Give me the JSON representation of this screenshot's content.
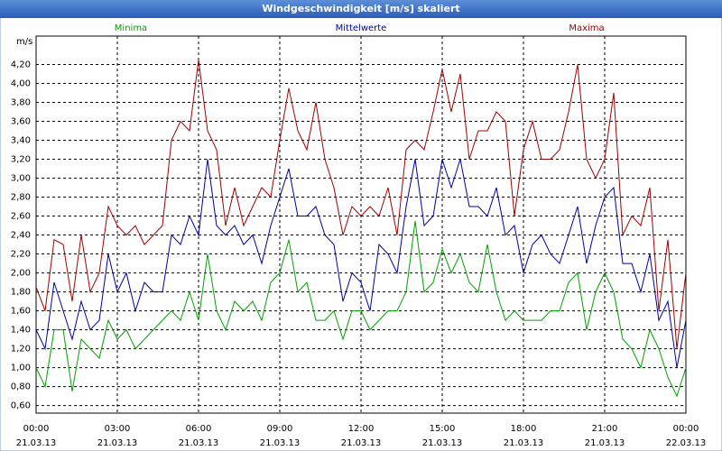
{
  "chart_data": {
    "type": "line",
    "title": "Windgeschwindigkeit [m/s] skaliert",
    "y_label": "m/s",
    "x": [
      "21.03.13 00:00",
      "21.03.13 00:20",
      "21.03.13 00:40",
      "21.03.13 01:00",
      "21.03.13 01:20",
      "21.03.13 01:40",
      "21.03.13 02:00",
      "21.03.13 02:20",
      "21.03.13 02:40",
      "21.03.13 03:00",
      "21.03.13 03:20",
      "21.03.13 03:40",
      "21.03.13 04:00",
      "21.03.13 04:20",
      "21.03.13 04:40",
      "21.03.13 05:00",
      "21.03.13 05:20",
      "21.03.13 05:40",
      "21.03.13 06:00",
      "21.03.13 06:20",
      "21.03.13 06:40",
      "21.03.13 07:00",
      "21.03.13 07:20",
      "21.03.13 07:40",
      "21.03.13 08:00",
      "21.03.13 08:20",
      "21.03.13 08:40",
      "21.03.13 09:00",
      "21.03.13 09:20",
      "21.03.13 09:40",
      "21.03.13 10:00",
      "21.03.13 10:20",
      "21.03.13 10:40",
      "21.03.13 11:00",
      "21.03.13 11:20",
      "21.03.13 11:40",
      "21.03.13 12:00",
      "21.03.13 12:20",
      "21.03.13 12:40",
      "21.03.13 13:00",
      "21.03.13 13:20",
      "21.03.13 13:40",
      "21.03.13 14:00",
      "21.03.13 14:20",
      "21.03.13 14:40",
      "21.03.13 15:00",
      "21.03.13 15:20",
      "21.03.13 15:40",
      "21.03.13 16:00",
      "21.03.13 16:20",
      "21.03.13 16:40",
      "21.03.13 17:00",
      "21.03.13 17:20",
      "21.03.13 17:40",
      "21.03.13 18:00",
      "21.03.13 18:20",
      "21.03.13 18:40",
      "21.03.13 19:00",
      "21.03.13 19:20",
      "21.03.13 19:40",
      "21.03.13 20:00",
      "21.03.13 20:20",
      "21.03.13 20:40",
      "21.03.13 21:00",
      "21.03.13 21:20",
      "21.03.13 21:40",
      "21.03.13 22:00",
      "21.03.13 22:20",
      "21.03.13 22:40",
      "21.03.13 23:00",
      "21.03.13 23:20",
      "21.03.13 23:40",
      "22.03.13 00:00"
    ],
    "series": [
      {
        "name": "Minima",
        "color": "#00a000",
        "values": [
          1.0,
          0.8,
          1.4,
          1.4,
          0.75,
          1.3,
          1.2,
          1.1,
          1.5,
          1.3,
          1.4,
          1.2,
          1.3,
          1.4,
          1.5,
          1.6,
          1.5,
          1.8,
          1.5,
          2.2,
          1.6,
          1.4,
          1.7,
          1.6,
          1.7,
          1.5,
          1.9,
          2.0,
          2.35,
          1.8,
          1.9,
          1.5,
          1.5,
          1.6,
          1.3,
          1.6,
          1.6,
          1.4,
          1.5,
          1.6,
          1.6,
          1.8,
          2.55,
          1.8,
          1.9,
          2.25,
          2.0,
          2.2,
          1.9,
          1.8,
          2.3,
          1.8,
          1.5,
          1.6,
          1.5,
          1.5,
          1.5,
          1.6,
          1.6,
          1.9,
          2.0,
          1.4,
          1.8,
          2.0,
          1.8,
          1.3,
          1.2,
          1.0,
          1.4,
          1.2,
          0.9,
          0.7,
          1.0
        ]
      },
      {
        "name": "Mittelwerte",
        "color": "#0000a0",
        "values": [
          1.4,
          1.2,
          1.9,
          1.6,
          1.3,
          1.7,
          1.4,
          1.5,
          2.2,
          1.8,
          2.0,
          1.6,
          1.9,
          1.8,
          1.8,
          2.4,
          2.3,
          2.6,
          2.4,
          3.2,
          2.5,
          2.4,
          2.5,
          2.3,
          2.4,
          2.1,
          2.5,
          2.8,
          3.1,
          2.6,
          2.6,
          2.7,
          2.4,
          2.3,
          1.7,
          2.0,
          1.9,
          1.6,
          2.3,
          2.2,
          2.0,
          2.7,
          3.2,
          2.5,
          2.6,
          3.2,
          2.9,
          3.2,
          2.7,
          2.7,
          2.6,
          2.9,
          2.4,
          2.5,
          2.0,
          2.3,
          2.4,
          2.2,
          2.1,
          2.4,
          2.7,
          2.1,
          2.5,
          2.8,
          2.9,
          2.1,
          2.1,
          1.8,
          2.2,
          1.5,
          1.7,
          1.0,
          1.5
        ]
      },
      {
        "name": "Maxima",
        "color": "#a00000",
        "values": [
          1.85,
          1.6,
          2.35,
          2.3,
          1.7,
          2.4,
          1.8,
          2.0,
          2.7,
          2.5,
          2.4,
          2.5,
          2.3,
          2.4,
          2.5,
          3.4,
          3.6,
          3.5,
          4.25,
          3.5,
          3.3,
          2.5,
          2.9,
          2.5,
          2.7,
          2.9,
          2.8,
          3.4,
          3.95,
          3.5,
          3.3,
          3.8,
          3.2,
          2.9,
          2.4,
          2.7,
          2.6,
          2.7,
          2.6,
          2.9,
          2.4,
          3.3,
          3.4,
          3.3,
          3.7,
          4.15,
          3.7,
          4.1,
          3.2,
          3.5,
          3.5,
          3.7,
          3.6,
          2.6,
          3.3,
          3.6,
          3.2,
          3.2,
          3.3,
          3.7,
          4.2,
          3.2,
          3.0,
          3.2,
          3.9,
          2.4,
          2.6,
          2.5,
          2.9,
          1.6,
          2.35,
          1.2,
          2.0
        ]
      }
    ],
    "xlim": [
      "21.03.13 00:00",
      "22.03.13 00:00"
    ],
    "xticks": [
      {
        "value": "21.03.13 00:00",
        "label": "00:00",
        "date_label": "21.03.13"
      },
      {
        "value": "21.03.13 03:00",
        "label": "03:00",
        "date_label": "21.03.13"
      },
      {
        "value": "21.03.13 06:00",
        "label": "06:00",
        "date_label": "21.03.13"
      },
      {
        "value": "21.03.13 09:00",
        "label": "09:00",
        "date_label": "21.03.13"
      },
      {
        "value": "21.03.13 12:00",
        "label": "12:00",
        "date_label": "21.03.13"
      },
      {
        "value": "21.03.13 15:00",
        "label": "15:00",
        "date_label": "21.03.13"
      },
      {
        "value": "21.03.13 18:00",
        "label": "18:00",
        "date_label": "21.03.13"
      },
      {
        "value": "21.03.13 21:00",
        "label": "21:00",
        "date_label": "21.03.13"
      },
      {
        "value": "22.03.13 00:00",
        "label": "00:00",
        "date_label": "22.03.13"
      }
    ],
    "ylim": [
      0.52,
      4.5
    ],
    "yticks": [
      {
        "value": 0.6,
        "label": "0,60"
      },
      {
        "value": 0.8,
        "label": "0,80"
      },
      {
        "value": 1.0,
        "label": "1,00"
      },
      {
        "value": 1.2,
        "label": "1,20"
      },
      {
        "value": 1.4,
        "label": "1,40"
      },
      {
        "value": 1.6,
        "label": "1,60"
      },
      {
        "value": 1.8,
        "label": "1,80"
      },
      {
        "value": 2.0,
        "label": "2,00"
      },
      {
        "value": 2.2,
        "label": "2,20"
      },
      {
        "value": 2.4,
        "label": "2,40"
      },
      {
        "value": 2.6,
        "label": "2,60"
      },
      {
        "value": 2.8,
        "label": "2,80"
      },
      {
        "value": 3.0,
        "label": "3,00"
      },
      {
        "value": 3.2,
        "label": "3,20"
      },
      {
        "value": 3.4,
        "label": "3,40"
      },
      {
        "value": 3.6,
        "label": "3,60"
      },
      {
        "value": 3.8,
        "label": "3,80"
      },
      {
        "value": 4.0,
        "label": "4,00"
      },
      {
        "value": 4.2,
        "label": "4,20"
      }
    ],
    "grid": true
  }
}
